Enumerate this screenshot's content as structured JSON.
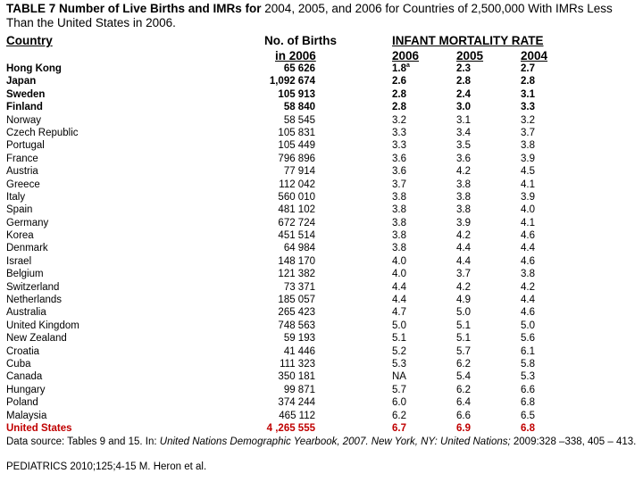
{
  "title": {
    "bold_part": "TABLE 7 Number of Live Births and IMRs for",
    "rest": " 2004, 2005, and 2006 for Countries of 2,500,000 With IMRs Less Than the United States in 2006."
  },
  "headers": {
    "country": "Country",
    "births_line1": "No. of Births",
    "births_line2": "in 2006",
    "imr_group": "INFANT MORTALITY RATE",
    "y2006": "2006",
    "y2005": "2005",
    "y2004": "2004"
  },
  "rows": [
    {
      "country": "Hong Kong",
      "births": "65 626",
      "y2006": "1.8",
      "y2006_sup": "a",
      "y2005": "2.3",
      "y2004": "2.7",
      "style": "bold"
    },
    {
      "country": "Japan",
      "births": "1,092 674",
      "y2006": "2.6",
      "y2005": "2.8",
      "y2004": "2.8",
      "style": "bold"
    },
    {
      "country": "Sweden",
      "births": "105 913",
      "y2006": "2.8",
      "y2005": "2.4",
      "y2004": "3.1",
      "style": "bold"
    },
    {
      "country": "Finland",
      "births": "58 840",
      "y2006": "2.8",
      "y2005": "3.0",
      "y2004": "3.3",
      "style": "bold"
    },
    {
      "country": "Norway",
      "births": "58 545",
      "y2006": "3.2",
      "y2005": "3.1",
      "y2004": "3.2",
      "style": "plain"
    },
    {
      "country": "Czech Republic",
      "births": "105 831",
      "y2006": "3.3",
      "y2005": "3.4",
      "y2004": "3.7",
      "style": "plain"
    },
    {
      "country": "Portugal",
      "births": "105 449",
      "y2006": "3.3",
      "y2005": "3.5",
      "y2004": "3.8",
      "style": "plain"
    },
    {
      "country": "France",
      "births": "796 896",
      "y2006": "3.6",
      "y2005": "3.6",
      "y2004": "3.9",
      "style": "plain"
    },
    {
      "country": "Austria",
      "births": "77 914",
      "y2006": "3.6",
      "y2005": "4.2",
      "y2004": "4.5",
      "style": "plain"
    },
    {
      "country": "Greece",
      "births": "112 042",
      "y2006": "3.7",
      "y2005": "3.8",
      "y2004": "4.1",
      "style": "plain"
    },
    {
      "country": "Italy",
      "births": "560 010",
      "y2006": "3.8",
      "y2005": "3.8",
      "y2004": "3.9",
      "style": "plain"
    },
    {
      "country": "Spain",
      "births": "481 102",
      "y2006": "3.8",
      "y2005": "3.8",
      "y2004": "4.0",
      "style": "plain"
    },
    {
      "country": "Germany",
      "births": "672 724",
      "y2006": "3.8",
      "y2005": "3.9",
      "y2004": "4.1",
      "style": "plain"
    },
    {
      "country": "Korea",
      "births": "451 514",
      "y2006": "3.8",
      "y2005": "4.2",
      "y2004": "4.6",
      "style": "plain"
    },
    {
      "country": "Denmark",
      "births": "64 984",
      "y2006": "3.8",
      "y2005": "4.4",
      "y2004": "4.4",
      "style": "plain"
    },
    {
      "country": "Israel",
      "births": "148 170",
      "y2006": "4.0",
      "y2005": "4.4",
      "y2004": "4.6",
      "style": "plain"
    },
    {
      "country": "Belgium",
      "births": "121 382",
      "y2006": "4.0",
      "y2005": "3.7",
      "y2004": "3.8",
      "style": "plain"
    },
    {
      "country": "Switzerland",
      "births": "73 371",
      "y2006": "4.4",
      "y2005": "4.2",
      "y2004": "4.2",
      "style": "plain"
    },
    {
      "country": "Netherlands",
      "births": "185 057",
      "y2006": "4.4",
      "y2005": "4.9",
      "y2004": "4.4",
      "style": "plain"
    },
    {
      "country": "Australia",
      "births": "265 423",
      "y2006": "4.7",
      "y2005": "5.0",
      "y2004": "4.6",
      "style": "plain"
    },
    {
      "country": "United Kingdom",
      "births": "748 563",
      "y2006": "5.0",
      "y2005": "5.1",
      "y2004": "5.0",
      "style": "plain"
    },
    {
      "country": "New Zealand",
      "births": "59 193",
      "y2006": "5.1",
      "y2005": "5.1",
      "y2004": "5.6",
      "style": "plain"
    },
    {
      "country": "Croatia",
      "births": "41 446",
      "y2006": "5.2",
      "y2005": "5.7",
      "y2004": "6.1",
      "style": "plain"
    },
    {
      "country": "Cuba",
      "births": "111 323",
      "y2006": "5.3",
      "y2005": "6.2",
      "y2004": "5.8",
      "style": "plain"
    },
    {
      "country": "Canada",
      "births": "350 181",
      "y2006": "NA",
      "y2005": "5.4",
      "y2004": "5.3",
      "style": "plain"
    },
    {
      "country": "Hungary",
      "births": "99 871",
      "y2006": "5.7",
      "y2005": "6.2",
      "y2004": "6.6",
      "style": "plain"
    },
    {
      "country": "Poland",
      "births": "374 244",
      "y2006": "6.0",
      "y2005": "6.4",
      "y2004": "6.8",
      "style": "plain"
    },
    {
      "country": "Malaysia",
      "births": "465 112",
      "y2006": "6.2",
      "y2005": "6.6",
      "y2004": "6.5",
      "style": "plain"
    },
    {
      "country": "United States",
      "births": "4 ,265 555",
      "y2006": "6.7",
      "y2005": "6.9",
      "y2004": "6.8",
      "style": "red"
    }
  ],
  "source": {
    "prefix": "Data source: Tables 9 and 15. In: ",
    "italic": "United Nations Demographic Yearbook, 2007. New York, NY: United Nations;",
    "suffix": " 2009:328 –338, 405 – 413."
  },
  "citation": "PEDIATRICS 2010;125;4-15 M. Heron et al.",
  "colors": {
    "text": "#000000",
    "highlight_red": "#c00000",
    "background": "#ffffff"
  }
}
